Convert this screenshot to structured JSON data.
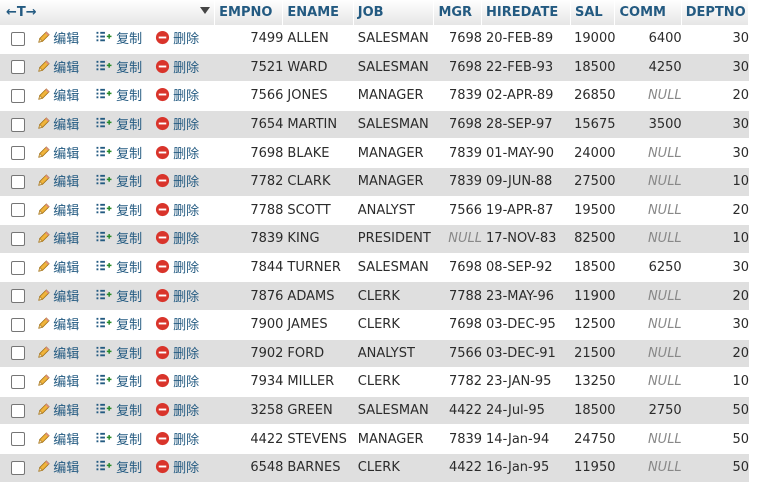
{
  "header": {
    "nav_arrows": "←T→",
    "columns": [
      "EMPNO",
      "ENAME",
      "JOB",
      "MGR",
      "HIREDATE",
      "SAL",
      "COMM",
      "DEPTNO"
    ]
  },
  "actions": {
    "edit": "编辑",
    "copy": "复制",
    "delete": "删除"
  },
  "null_label": "NULL",
  "rows": [
    {
      "empno": "7499",
      "ename": "ALLEN",
      "job": "SALESMAN",
      "mgr": "7698",
      "hiredate": "20-FEB-89",
      "sal": "19000",
      "comm": "6400",
      "deptno": "30"
    },
    {
      "empno": "7521",
      "ename": "WARD",
      "job": "SALESMAN",
      "mgr": "7698",
      "hiredate": "22-FEB-93",
      "sal": "18500",
      "comm": "4250",
      "deptno": "30"
    },
    {
      "empno": "7566",
      "ename": "JONES",
      "job": "MANAGER",
      "mgr": "7839",
      "hiredate": "02-APR-89",
      "sal": "26850",
      "comm": null,
      "deptno": "20"
    },
    {
      "empno": "7654",
      "ename": "MARTIN",
      "job": "SALESMAN",
      "mgr": "7698",
      "hiredate": "28-SEP-97",
      "sal": "15675",
      "comm": "3500",
      "deptno": "30"
    },
    {
      "empno": "7698",
      "ename": "BLAKE",
      "job": "MANAGER",
      "mgr": "7839",
      "hiredate": "01-MAY-90",
      "sal": "24000",
      "comm": null,
      "deptno": "30"
    },
    {
      "empno": "7782",
      "ename": "CLARK",
      "job": "MANAGER",
      "mgr": "7839",
      "hiredate": "09-JUN-88",
      "sal": "27500",
      "comm": null,
      "deptno": "10"
    },
    {
      "empno": "7788",
      "ename": "SCOTT",
      "job": "ANALYST",
      "mgr": "7566",
      "hiredate": "19-APR-87",
      "sal": "19500",
      "comm": null,
      "deptno": "20"
    },
    {
      "empno": "7839",
      "ename": "KING",
      "job": "PRESIDENT",
      "mgr": null,
      "hiredate": "17-NOV-83",
      "sal": "82500",
      "comm": null,
      "deptno": "10"
    },
    {
      "empno": "7844",
      "ename": "TURNER",
      "job": "SALESMAN",
      "mgr": "7698",
      "hiredate": "08-SEP-92",
      "sal": "18500",
      "comm": "6250",
      "deptno": "30"
    },
    {
      "empno": "7876",
      "ename": "ADAMS",
      "job": "CLERK",
      "mgr": "7788",
      "hiredate": "23-MAY-96",
      "sal": "11900",
      "comm": null,
      "deptno": "20"
    },
    {
      "empno": "7900",
      "ename": "JAMES",
      "job": "CLERK",
      "mgr": "7698",
      "hiredate": "03-DEC-95",
      "sal": "12500",
      "comm": null,
      "deptno": "30"
    },
    {
      "empno": "7902",
      "ename": "FORD",
      "job": "ANALYST",
      "mgr": "7566",
      "hiredate": "03-DEC-91",
      "sal": "21500",
      "comm": null,
      "deptno": "20"
    },
    {
      "empno": "7934",
      "ename": "MILLER",
      "job": "CLERK",
      "mgr": "7782",
      "hiredate": "23-JAN-95",
      "sal": "13250",
      "comm": null,
      "deptno": "10"
    },
    {
      "empno": "3258",
      "ename": "GREEN",
      "job": "SALESMAN",
      "mgr": "4422",
      "hiredate": "24-Jul-95",
      "sal": "18500",
      "comm": "2750",
      "deptno": "50"
    },
    {
      "empno": "4422",
      "ename": "STEVENS",
      "job": "MANAGER",
      "mgr": "7839",
      "hiredate": "14-Jan-94",
      "sal": "24750",
      "comm": null,
      "deptno": "50"
    },
    {
      "empno": "6548",
      "ename": "BARNES",
      "job": "CLERK",
      "mgr": "4422",
      "hiredate": "16-Jan-95",
      "sal": "11950",
      "comm": null,
      "deptno": "50"
    }
  ],
  "colors": {
    "link": "#235a81",
    "row_alt": "#dfdfdf",
    "null_text": "#888888",
    "delete_red": "#d9342b"
  }
}
